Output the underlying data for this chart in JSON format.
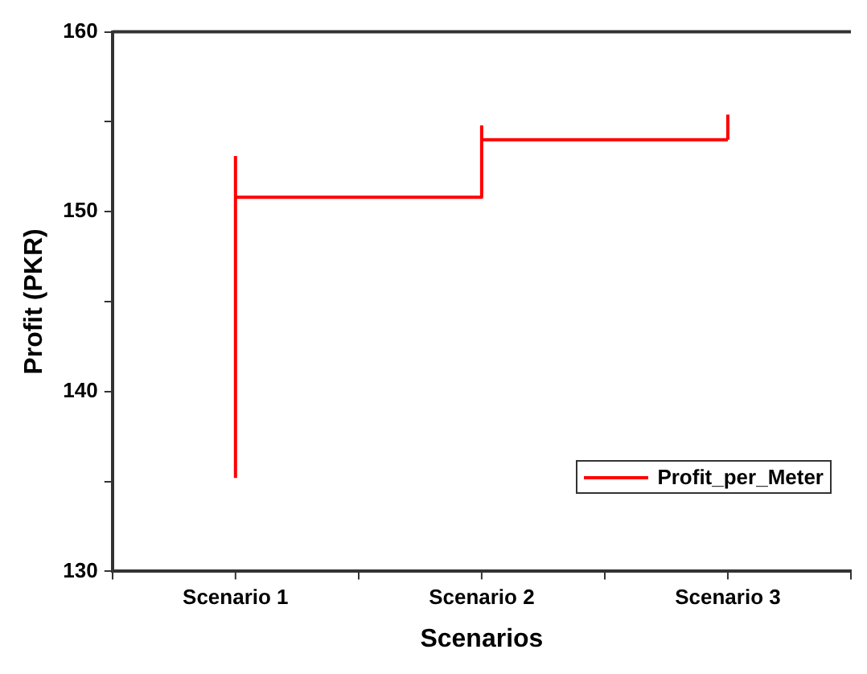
{
  "chart_data": {
    "type": "step",
    "xlabel": "Scenarios",
    "ylabel": "Profit (PKR)",
    "categories": [
      "Scenario 1",
      "Scenario 2",
      "Scenario 3"
    ],
    "series": [
      {
        "name": "Profit_per_Meter",
        "color": "#ff0000",
        "values": [
          150.8,
          154.0,
          154.0
        ],
        "errors": [
          [
            135.2,
            153.1
          ],
          [
            154.0,
            154.8
          ],
          [
            154.0,
            155.4
          ]
        ]
      }
    ],
    "ylim": [
      130,
      160
    ],
    "yticks": [
      130,
      {
        "value": 135,
        "label": null
      },
      140,
      {
        "value": 145,
        "label": null
      },
      150,
      {
        "value": 155,
        "label": null
      },
      160
    ],
    "grid": false,
    "legend": "bottom right",
    "marker": "none",
    "line_style": "solid"
  }
}
